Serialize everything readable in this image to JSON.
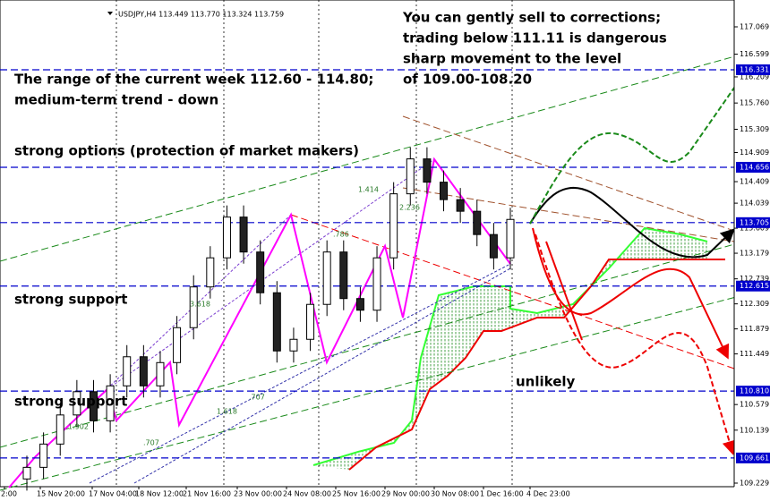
{
  "chart_data": {
    "type": "candlestick",
    "header": "USDJPY,H4  113.449 113.770 113.324 113.759",
    "annotations": [
      "You can gently sell to corrections;",
      "trading below 111.11 is dangerous",
      "sharp movement to the level",
      "of 109.00-108.20",
      "The range of the current week 112.60 - 114.80;",
      "medium-term trend - down",
      "strong options (protection of market makers)",
      "strong support",
      "strong support",
      "unlikely"
    ],
    "fib_labels": [
      "1.414",
      "2.236",
      ".786",
      "3.618",
      "1.618",
      "1.902",
      ".707",
      ".707"
    ],
    "categories": [
      "2:00",
      "15 Nov 20:00",
      "17 Nov 04:00",
      "18 Nov 12:00",
      "21 Nov 16:00",
      "23 Nov 00:00",
      "24 Nov 08:00",
      "25 Nov 16:00",
      "29 Nov 00:00",
      "30 Nov 08:00",
      "1 Dec 16:00",
      "4 Dec 23:00"
    ],
    "open": [
      109.3,
      109.5,
      109.9,
      110.4,
      110.8,
      110.3,
      110.9,
      111.4,
      110.9,
      111.3,
      111.9,
      112.6,
      113.1,
      113.8,
      113.2,
      112.5,
      111.5,
      111.7,
      112.3,
      113.2,
      112.4,
      112.2,
      113.1,
      114.2,
      114.8,
      114.4,
      114.1,
      113.9,
      113.5,
      113.1
    ],
    "high": [
      109.7,
      110.1,
      110.6,
      111.0,
      111.0,
      111.1,
      111.6,
      111.6,
      111.5,
      112.1,
      112.8,
      113.3,
      114.0,
      114.0,
      113.4,
      112.7,
      111.9,
      112.5,
      113.4,
      113.4,
      112.6,
      113.3,
      114.4,
      115.0,
      115.0,
      114.6,
      114.3,
      114.1,
      113.7,
      113.96
    ],
    "low": [
      109.1,
      109.3,
      109.7,
      110.2,
      110.1,
      110.1,
      110.7,
      110.7,
      110.7,
      111.1,
      111.7,
      112.4,
      112.9,
      113.0,
      112.3,
      111.3,
      111.3,
      111.5,
      112.1,
      112.2,
      112.0,
      112.0,
      112.9,
      114.0,
      114.2,
      113.9,
      113.7,
      113.3,
      112.9,
      112.9
    ],
    "close": [
      109.5,
      109.9,
      110.4,
      110.8,
      110.3,
      110.9,
      111.4,
      110.9,
      111.3,
      111.9,
      112.6,
      113.1,
      113.8,
      113.2,
      112.5,
      111.5,
      111.7,
      112.3,
      113.2,
      112.4,
      112.2,
      113.1,
      114.2,
      114.8,
      114.4,
      114.1,
      113.9,
      113.5,
      113.1,
      113.76
    ],
    "levels": [
      116.331,
      114.656,
      113.705,
      112.615,
      {
        "value": 110.81,
        "label": "110.810"
      },
      109.661
    ],
    "level_color": "#0000cc",
    "ylim": [
      109.229,
      117.069
    ],
    "yticks": [
      117.069,
      116.599,
      116.209,
      {
        "value": 115.76,
        "label": "115.760"
      },
      115.309,
      114.909,
      114.409,
      114.039,
      113.609,
      113.179,
      112.739,
      112.309,
      111.879,
      111.449,
      110.579,
      110.139,
      109.229
    ]
  }
}
